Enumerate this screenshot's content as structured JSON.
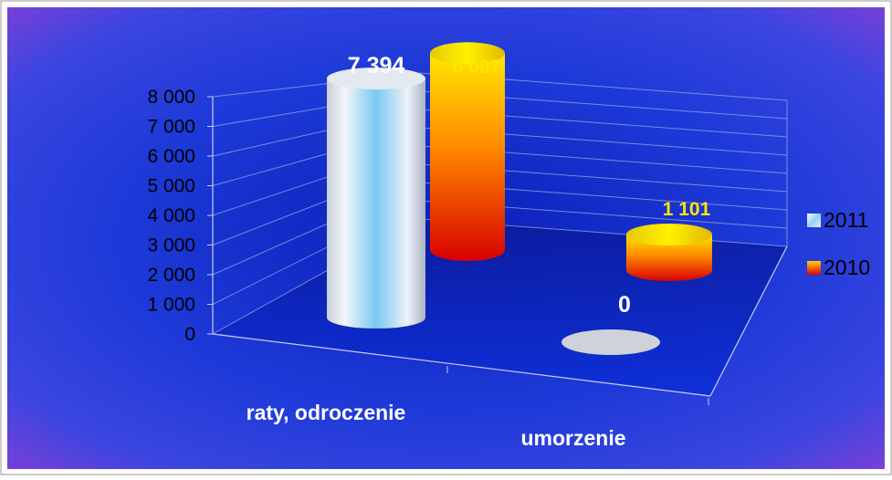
{
  "chart_data": {
    "type": "bar",
    "style": "3d-cylinder",
    "title": "",
    "categories": [
      "raty, odroczenie",
      "umorzenie"
    ],
    "series": [
      {
        "name": "2011",
        "values": [
          7394,
          0
        ],
        "value_labels": [
          "7 394",
          "0"
        ]
      },
      {
        "name": "2010",
        "values": [
          6087,
          1101
        ],
        "value_labels": [
          "6 087",
          "1 101"
        ]
      }
    ],
    "ylim": [
      0,
      8000
    ],
    "y_ticks": [
      0,
      1000,
      2000,
      3000,
      4000,
      5000,
      6000,
      7000,
      8000
    ],
    "y_tick_labels": [
      "0",
      "1 000",
      "2 000",
      "3 000",
      "4 000",
      "5 000",
      "6 000",
      "7 000",
      "8 000"
    ],
    "grid": true,
    "legend_position": "right",
    "colors": {
      "series_2011": "#dfe6f2",
      "series_2011_accent": "#6cc8f4",
      "series_2010_top": "#ffe000",
      "series_2010_bottom": "#e00000",
      "label_2011": "#ffffff",
      "label_2010": "#ffe600",
      "background_outer": "#8040d0",
      "background_inner": "#1030d8"
    }
  }
}
